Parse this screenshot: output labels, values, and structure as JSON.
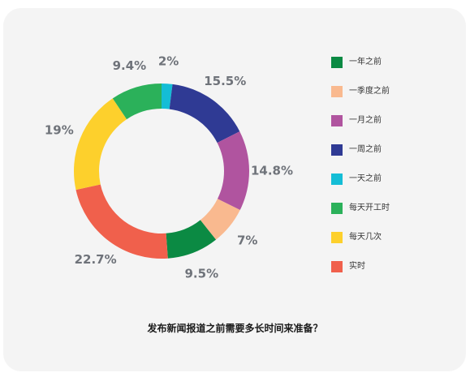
{
  "chart_data": {
    "type": "pie",
    "variant": "donut",
    "title": "发布新闻报道之前需要多长时间来准备？",
    "legend_position": "right",
    "slices": [
      {
        "name": "一年之前",
        "value": 9.5,
        "label": "9.5%",
        "color": "#0b8a43"
      },
      {
        "name": "一季度之前",
        "value": 7,
        "label": "7%",
        "color": "#f9b98f"
      },
      {
        "name": "一月之前",
        "value": 14.8,
        "label": "14.8%",
        "color": "#b0549f"
      },
      {
        "name": "一周之前",
        "value": 15.5,
        "label": "15.5%",
        "color": "#2f3a94"
      },
      {
        "name": "一天之前",
        "value": 2,
        "label": "2%",
        "color": "#14bdd6"
      },
      {
        "name": "每天开工时",
        "value": 9.4,
        "label": "9.4%",
        "color": "#2bb15a"
      },
      {
        "name": "每天几次",
        "value": 19,
        "label": "19%",
        "color": "#fdd02c"
      },
      {
        "name": "实时",
        "value": 22.7,
        "label": "22.7%",
        "color": "#f0604c"
      }
    ]
  }
}
